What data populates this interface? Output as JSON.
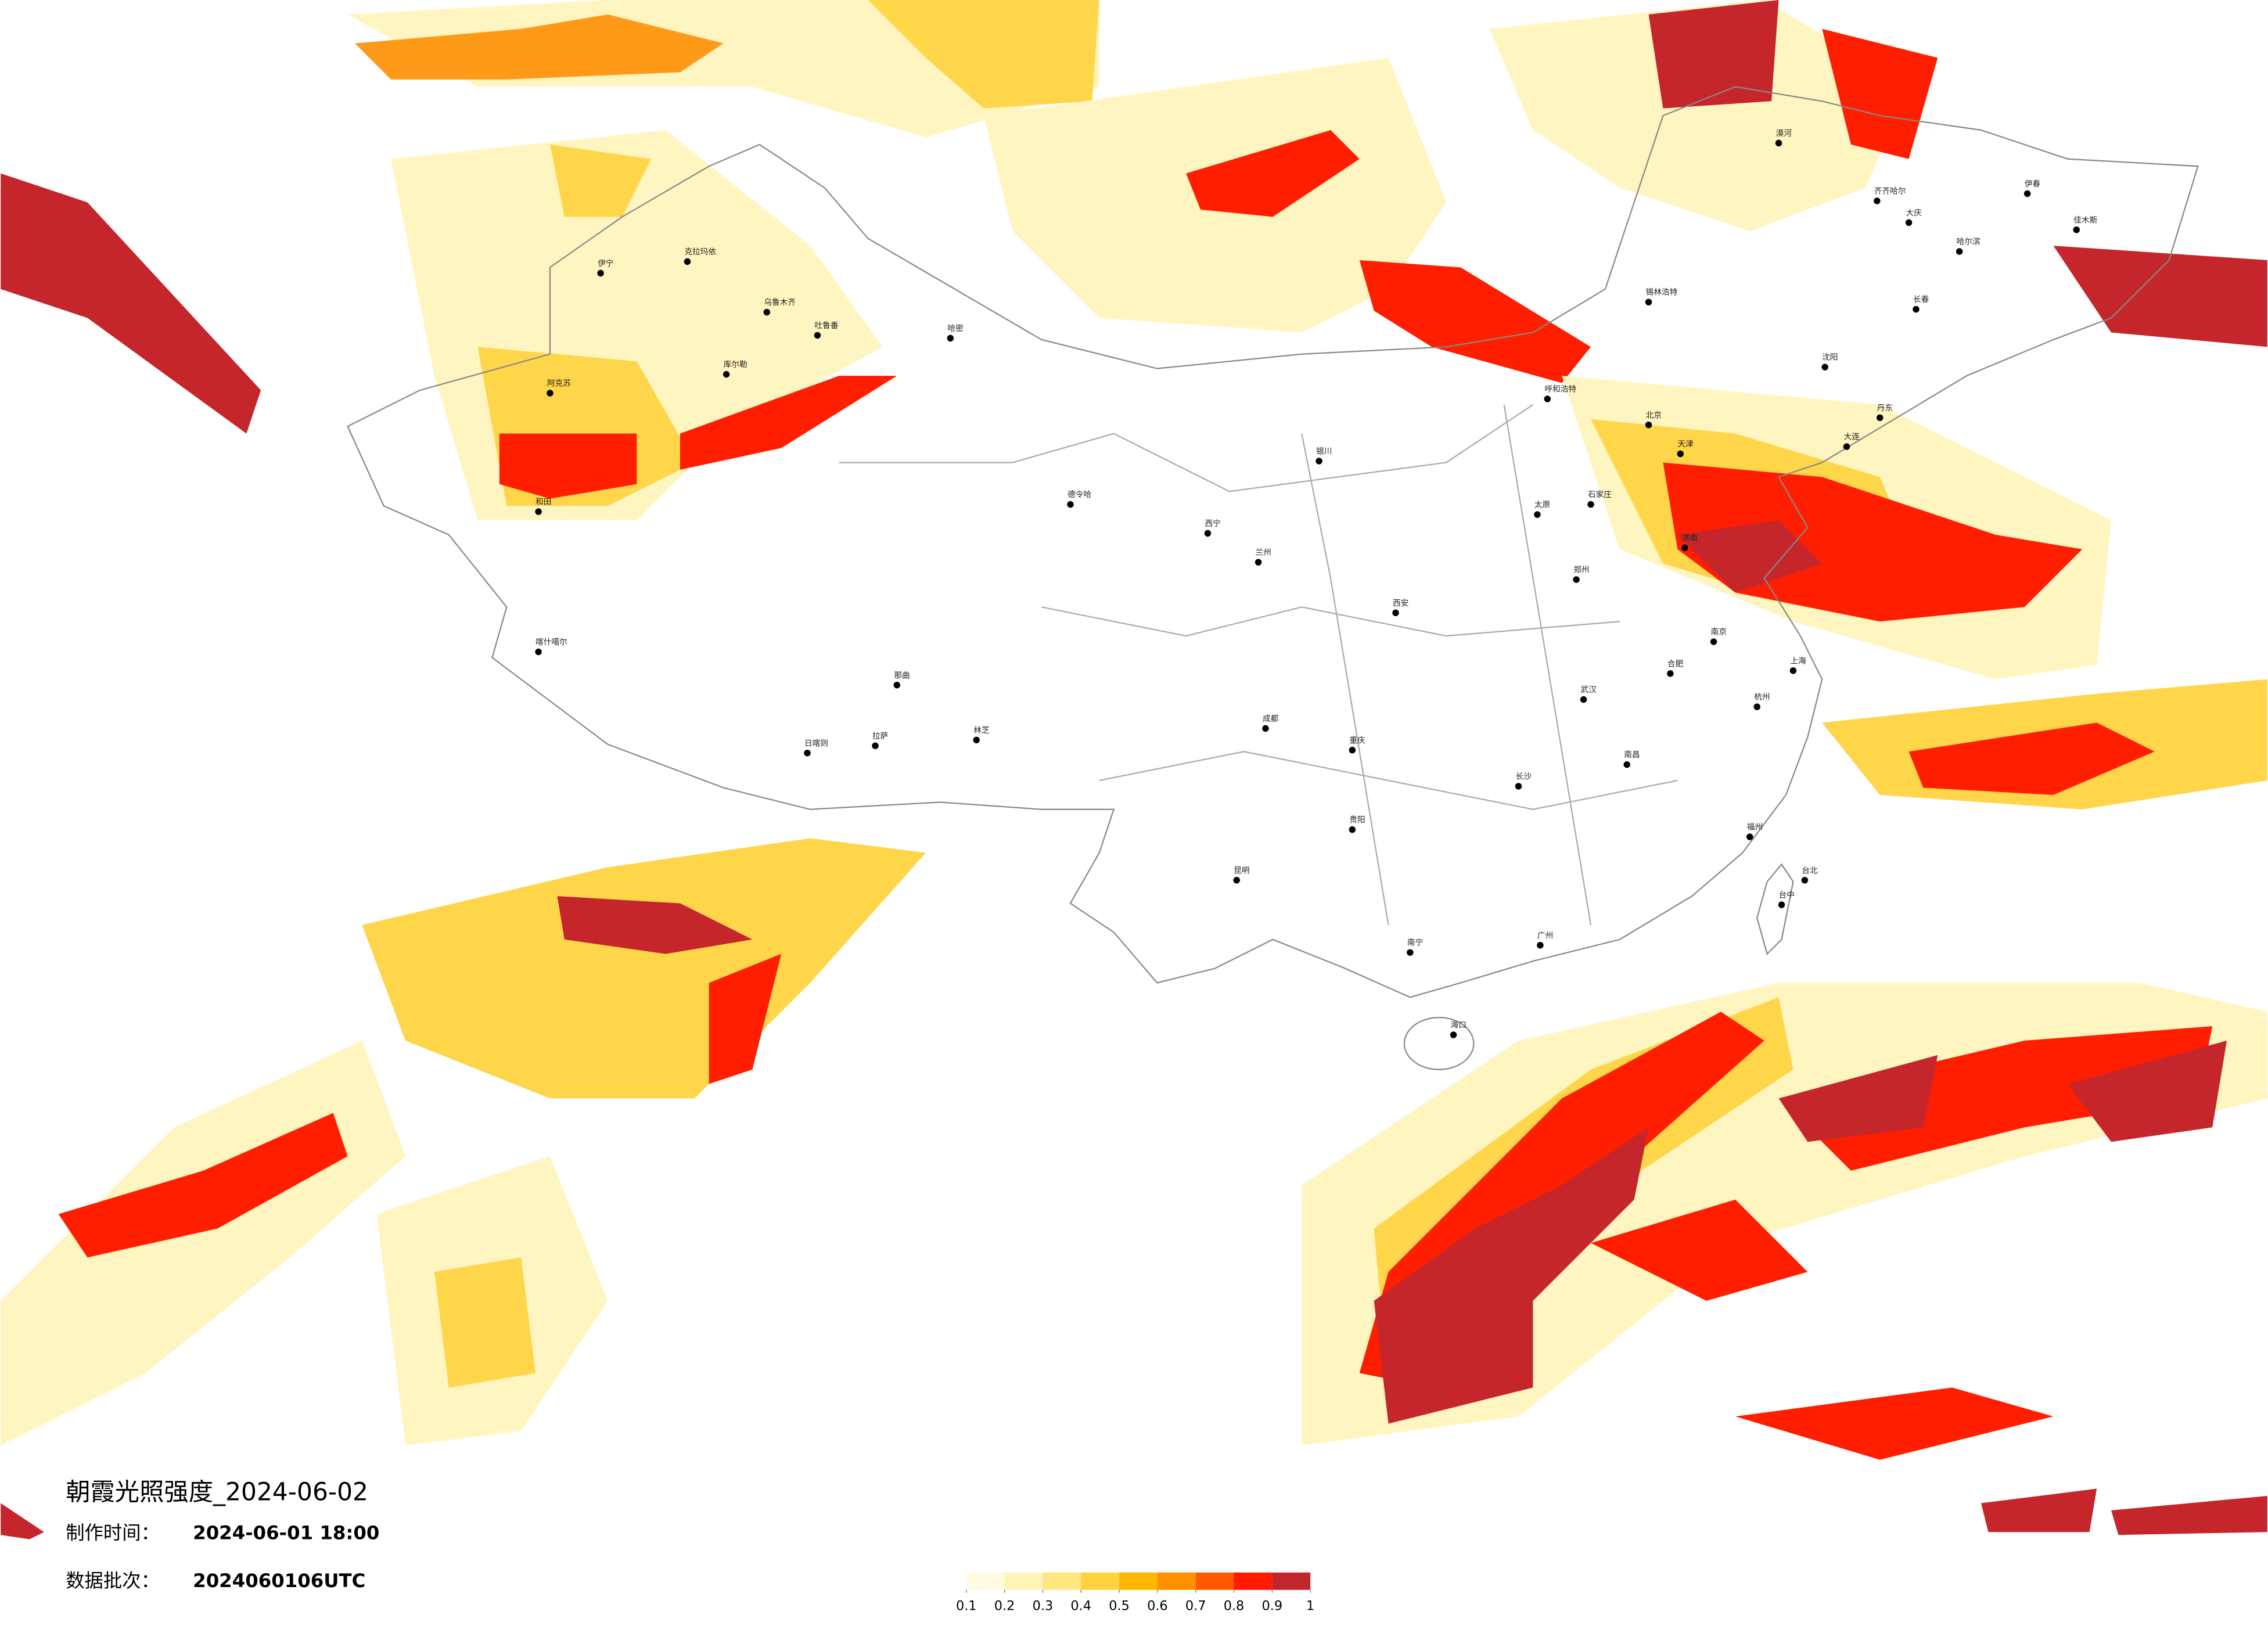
{
  "map": {
    "title": "朝霞光照强度_2024-06-02",
    "production_label": "制作时间：",
    "production_time": "2024-06-01 18:00",
    "batch_label": "数据批次：",
    "batch": "2024060106UTC",
    "cities": [
      "克拉玛依",
      "伊宁",
      "乌鲁木齐",
      "吐鲁番",
      "哈密",
      "库尔勒",
      "阿克苏",
      "和田",
      "喀什噶尔",
      "那曲",
      "日喀则",
      "拉萨",
      "林芝",
      "德令哈",
      "西宁",
      "兰州",
      "银川",
      "呼和浩特",
      "锡林浩特",
      "北京",
      "天津",
      "石家庄",
      "太原",
      "济南",
      "郑州",
      "西安",
      "成都",
      "重庆",
      "贵阳",
      "昆明",
      "南宁",
      "广州",
      "海口",
      "长沙",
      "武汉",
      "南昌",
      "合肥",
      "南京",
      "上海",
      "杭州",
      "福州",
      "台北",
      "台中",
      "沈阳",
      "长春",
      "哈尔滨",
      "大庆",
      "齐齐哈尔",
      "漠河",
      "伊春",
      "佳木斯",
      "大连",
      "丹东"
    ],
    "colorbar": {
      "ticks": [
        0.1,
        0.2,
        0.3,
        0.4,
        0.5,
        0.6,
        0.7,
        0.8,
        0.9,
        1
      ],
      "colors": [
        "#fffbe0",
        "#fff4b8",
        "#ffe680",
        "#ffd340",
        "#ffb800",
        "#ff9000",
        "#ff5a00",
        "#ff1a00",
        "#c0262c"
      ]
    }
  }
}
